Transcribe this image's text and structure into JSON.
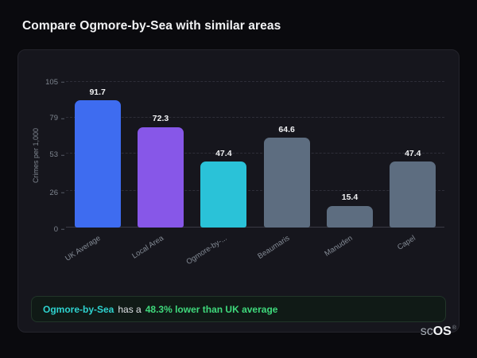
{
  "page": {
    "title": "Compare Ogmore-by-Sea with similar areas"
  },
  "chart_data": {
    "type": "bar",
    "categories": [
      "UK Average",
      "Local Area",
      "Ogmore-by-...",
      "Beaumaris",
      "Manuden",
      "Capel"
    ],
    "values": [
      91.7,
      72.3,
      47.4,
      64.6,
      15.4,
      47.4
    ],
    "bar_colors": [
      "#3e6cf0",
      "#8757e8",
      "#2ac2d8",
      "#5d6d80",
      "#5d6d80",
      "#5d6d80"
    ],
    "title": "",
    "xlabel": "",
    "ylabel": "Crimes per 1,000",
    "yticks": [
      0,
      26,
      53,
      79,
      105
    ],
    "ylim": [
      0,
      105
    ],
    "grid": "horizontal-dashed",
    "legend": "none"
  },
  "note": {
    "area_label": "Ogmore-by-Sea",
    "middle_text": "has a",
    "highlight_text": "48.3% lower than UK average"
  },
  "branding": {
    "prefix": "sc",
    "suffix": "OS",
    "registered": "®"
  },
  "colors": {
    "background": "#0a0a0e",
    "card": "#16161d",
    "note_area_text": "#2ed3cf",
    "note_highlight_text": "#3fd97c"
  }
}
